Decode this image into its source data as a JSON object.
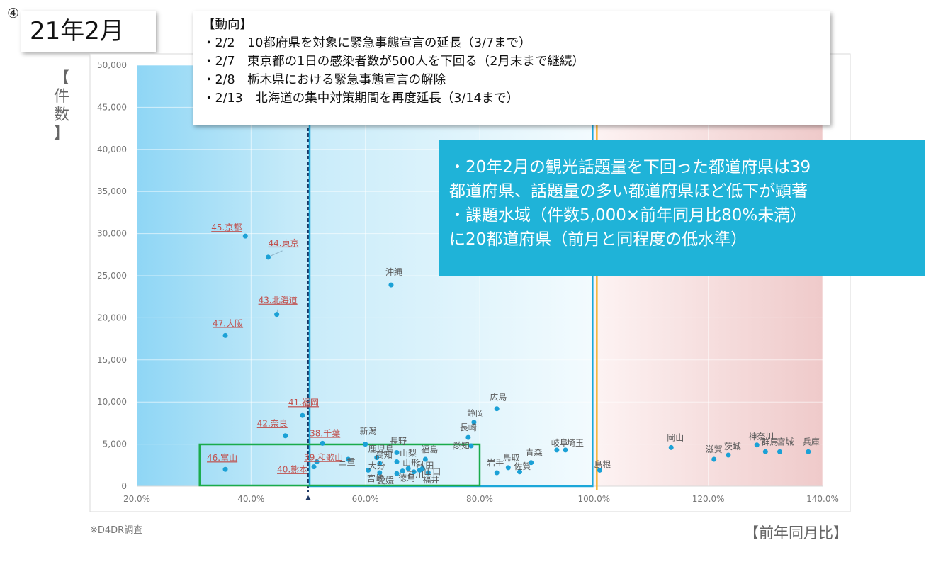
{
  "page_number": "④",
  "title": "21年2月",
  "trend": {
    "heading": "【動向】",
    "items": [
      "・2/2　10都府県を対象に緊急事態宣言の延長（3/7まで）",
      "・2/7　東京都の1日の感染者数が500人を下回る（2月末まで継続）",
      "・2/8　栃木県における緊急事態宣言の解除",
      "・2/13　北海道の集中対策期間を再度延長（3/14まで）"
    ]
  },
  "callout": [
    "・20年2月の観光話題量を下回った都道府県は39",
    "都道府県、話題量の多い都道府県ほど低下が顕著",
    "・課題水域（件数5,000×前年同月比80%未満）",
    "に20都道府県（前月と同程度の低水準）"
  ],
  "source_note": "※D4DR調査",
  "colors": {
    "point": "#1ba1d6",
    "red_label": "#c0504d",
    "label": "#595959",
    "green_box": "#1aab4b",
    "blue_box": "#1ba7d9",
    "orange_line": "#f2b233",
    "dashed_line": "#1f3864"
  },
  "chart_data": {
    "type": "scatter",
    "xlabel": "【前年同月比】",
    "ylabel": "【件数】",
    "xlim": [
      0.2,
      1.4
    ],
    "ylim": [
      0,
      50000
    ],
    "x_ticks": [
      "20.0%",
      "40.0%",
      "60.0%",
      "80.0%",
      "100.0%",
      "120.0%",
      "140.0%"
    ],
    "y_ticks": [
      "0",
      "5,000",
      "10,000",
      "15,000",
      "20,000",
      "25,000",
      "30,000",
      "35,000",
      "40,000",
      "45,000",
      "50,000"
    ],
    "grid": true,
    "reference_lines": {
      "dashed_x": 0.5,
      "solid_x": 1.0
    },
    "problem_zone": {
      "x": [
        0.31,
        0.8
      ],
      "y": [
        0,
        4800
      ]
    },
    "points": [
      {
        "label": "45.京都",
        "x": 0.39,
        "y": 29700,
        "highlight": true
      },
      {
        "label": "44.東京",
        "x": 0.43,
        "y": 27200,
        "highlight": true
      },
      {
        "label": "43.北海道",
        "x": 0.445,
        "y": 20400,
        "highlight": true
      },
      {
        "label": "47.大阪",
        "x": 0.355,
        "y": 17900,
        "highlight": true
      },
      {
        "label": "41.福岡",
        "x": 0.49,
        "y": 8400,
        "highlight": true
      },
      {
        "label": "42.奈良",
        "x": 0.46,
        "y": 6000,
        "highlight": true
      },
      {
        "label": "38.千葉",
        "x": 0.525,
        "y": 5100,
        "highlight": true
      },
      {
        "label": "39.和歌山",
        "x": 0.515,
        "y": 2900,
        "highlight": true
      },
      {
        "label": "40.熊本",
        "x": 0.51,
        "y": 2300,
        "highlight": true
      },
      {
        "label": "46.富山",
        "x": 0.355,
        "y": 2000,
        "highlight": true
      },
      {
        "label": "沖縄",
        "x": 0.645,
        "y": 23900,
        "highlight": false
      },
      {
        "label": "新潟",
        "x": 0.6,
        "y": 5000,
        "highlight": false
      },
      {
        "label": "長野",
        "x": 0.655,
        "y": 4000,
        "highlight": false
      },
      {
        "label": "鹿児島",
        "x": 0.62,
        "y": 3400,
        "highlight": false
      },
      {
        "label": "高知",
        "x": 0.625,
        "y": 2700,
        "highlight": false
      },
      {
        "label": "山梨",
        "x": 0.655,
        "y": 2900,
        "highlight": false
      },
      {
        "label": "三重",
        "x": 0.57,
        "y": 3200,
        "highlight": false
      },
      {
        "label": "大分",
        "x": 0.605,
        "y": 1900,
        "highlight": false
      },
      {
        "label": "宮崎",
        "x": 0.625,
        "y": 1600,
        "highlight": false
      },
      {
        "label": "愛媛",
        "x": 0.655,
        "y": 1500,
        "highlight": false
      },
      {
        "label": "徳島",
        "x": 0.665,
        "y": 1800,
        "highlight": false
      },
      {
        "label": "山形",
        "x": 0.675,
        "y": 2100,
        "highlight": false
      },
      {
        "label": "石川",
        "x": 0.685,
        "y": 1700,
        "highlight": false
      },
      {
        "label": "福島",
        "x": 0.705,
        "y": 3200,
        "highlight": false
      },
      {
        "label": "秋田",
        "x": 0.7,
        "y": 2100,
        "highlight": false
      },
      {
        "label": "福井",
        "x": 0.71,
        "y": 1600,
        "highlight": false
      },
      {
        "label": "山口",
        "x": 0.695,
        "y": 1900,
        "highlight": false
      },
      {
        "label": "広島",
        "x": 0.83,
        "y": 9200,
        "highlight": false
      },
      {
        "label": "静岡",
        "x": 0.79,
        "y": 7600,
        "highlight": false
      },
      {
        "label": "長崎",
        "x": 0.78,
        "y": 5800,
        "highlight": false
      },
      {
        "label": "愛知",
        "x": 0.785,
        "y": 4800,
        "highlight": false
      },
      {
        "label": "岩手",
        "x": 0.83,
        "y": 1600,
        "highlight": false
      },
      {
        "label": "鳥取",
        "x": 0.85,
        "y": 2200,
        "highlight": false
      },
      {
        "label": "佐賀",
        "x": 0.87,
        "y": 1700,
        "highlight": false
      },
      {
        "label": "青森",
        "x": 0.89,
        "y": 2800,
        "highlight": false
      },
      {
        "label": "岐阜",
        "x": 0.935,
        "y": 4300,
        "highlight": false
      },
      {
        "label": "埼玉",
        "x": 0.95,
        "y": 4300,
        "highlight": false
      },
      {
        "label": "島根",
        "x": 1.01,
        "y": 1900,
        "highlight": false
      },
      {
        "label": "岡山",
        "x": 1.135,
        "y": 4600,
        "highlight": false
      },
      {
        "label": "滋賀",
        "x": 1.21,
        "y": 3200,
        "highlight": false
      },
      {
        "label": "茨城",
        "x": 1.235,
        "y": 3700,
        "highlight": false
      },
      {
        "label": "神奈川",
        "x": 1.285,
        "y": 4900,
        "highlight": false
      },
      {
        "label": "群馬",
        "x": 1.3,
        "y": 4100,
        "highlight": false
      },
      {
        "label": "宮城",
        "x": 1.325,
        "y": 4100,
        "highlight": false
      },
      {
        "label": "兵庫",
        "x": 1.375,
        "y": 4100,
        "highlight": false
      }
    ]
  }
}
